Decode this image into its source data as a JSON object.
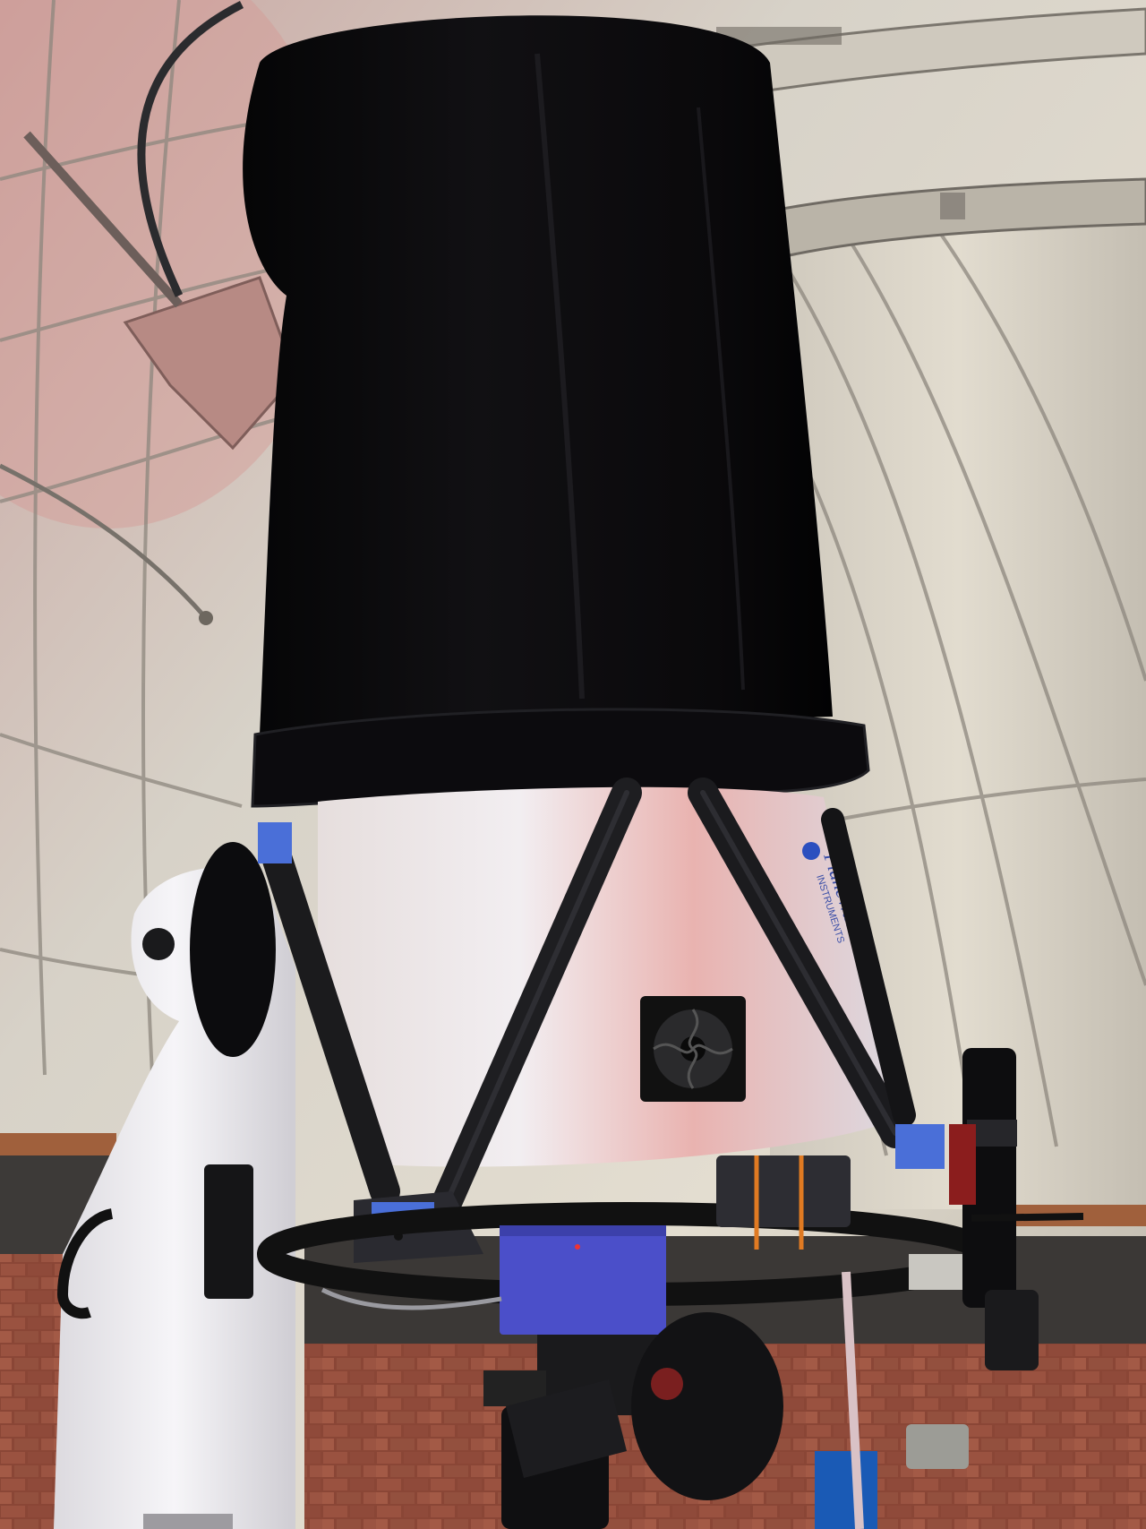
{
  "photo": {
    "subject": "telescope",
    "setting": "observatory-dome"
  },
  "telescope": {
    "brand_text": "PlaneWave",
    "brand_subtext": "INSTRUMENTS"
  },
  "colors": {
    "dome_light": "#d9d5cc",
    "dome_mid": "#b8b3aa",
    "dome_shadow": "#8c8780",
    "dome_pink": "#c9a9a6",
    "shroud": "#0b0a0c",
    "tube_body": "#e7e2e6",
    "truss": "#1a1a1c",
    "accent_blue": "#4a6fd8",
    "box_blue": "#4b4fc9",
    "brick": "#8e4a38",
    "mount_white": "#f1f0f2",
    "wood_rail": "#a0603c"
  }
}
